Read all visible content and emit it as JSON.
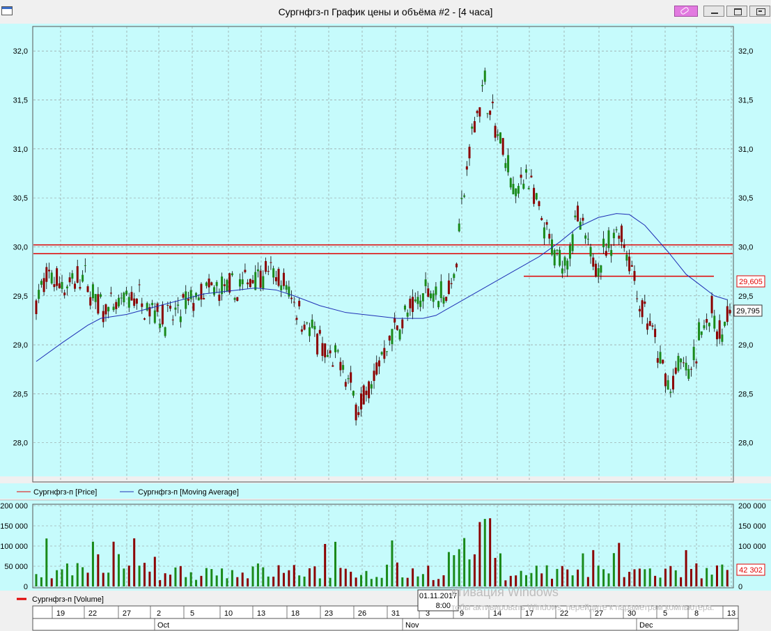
{
  "window": {
    "title": "Сургнфгз-п График цены и объёма #2 - [4 часа]"
  },
  "colors": {
    "chart_bg": "#c6fbfc",
    "up": "#1a8a1a",
    "down": "#8b0000",
    "resistance": "#e00000",
    "ma": "#1f2fb5",
    "grid": "#8c8c8c"
  },
  "legend": {
    "price": "Сургнфгз-п [Price]",
    "ma": "Сургнфгз-п [Moving Average]",
    "volume": "Сургнфгз-п [Volume]"
  },
  "price_axis": {
    "ticks": [
      "28,0",
      "28,5",
      "29,0",
      "29,5",
      "30,0",
      "30,5",
      "31,0",
      "31,5",
      "32,0"
    ],
    "last_price": "29,605",
    "ma_value": "29,795"
  },
  "volume_axis": {
    "ticks": [
      "0",
      "50 000",
      "100 000",
      "150 000",
      "200 000"
    ],
    "last_volume": "42 302"
  },
  "date_axis": {
    "days": [
      "19",
      "22",
      "27",
      "2",
      "5",
      "10",
      "13",
      "18",
      "23",
      "26",
      "31",
      "3",
      "9",
      "14",
      "17",
      "22",
      "27",
      "30",
      "5",
      "8",
      "13"
    ],
    "months": [
      "Oct",
      "Nov",
      "Dec"
    ],
    "cursor_date": "01.11.2017",
    "cursor_time": "8:00"
  },
  "watermark": {
    "title": "ктивация Windows",
    "text": "тобы активировать Windows, перейдите к параметрам компьютера."
  },
  "chart_data": {
    "type": "candlestick",
    "price_ylim": [
      27.6,
      32.25
    ],
    "volume_ylim": [
      0,
      200000
    ],
    "resistance_levels": [
      30.02,
      29.93
    ],
    "support_level": 29.7,
    "ma_points": [
      [
        0,
        28.83
      ],
      [
        10,
        29.02
      ],
      [
        20,
        29.2
      ],
      [
        25,
        29.27
      ],
      [
        35,
        29.31
      ],
      [
        45,
        29.38
      ],
      [
        55,
        29.45
      ],
      [
        65,
        29.52
      ],
      [
        75,
        29.55
      ],
      [
        85,
        29.58
      ],
      [
        93,
        29.56
      ],
      [
        100,
        29.5
      ],
      [
        110,
        29.4
      ],
      [
        120,
        29.33
      ],
      [
        130,
        29.3
      ],
      [
        140,
        29.27
      ],
      [
        150,
        29.27
      ],
      [
        155,
        29.3
      ],
      [
        165,
        29.45
      ],
      [
        175,
        29.6
      ],
      [
        185,
        29.75
      ],
      [
        195,
        29.9
      ],
      [
        203,
        30.05
      ],
      [
        210,
        30.2
      ],
      [
        218,
        30.3
      ],
      [
        225,
        30.34
      ],
      [
        230,
        30.33
      ],
      [
        236,
        30.22
      ],
      [
        245,
        29.95
      ],
      [
        252,
        29.72
      ],
      [
        258,
        29.6
      ],
      [
        263,
        29.5
      ],
      [
        268,
        29.46
      ]
    ],
    "seed": 7
  }
}
